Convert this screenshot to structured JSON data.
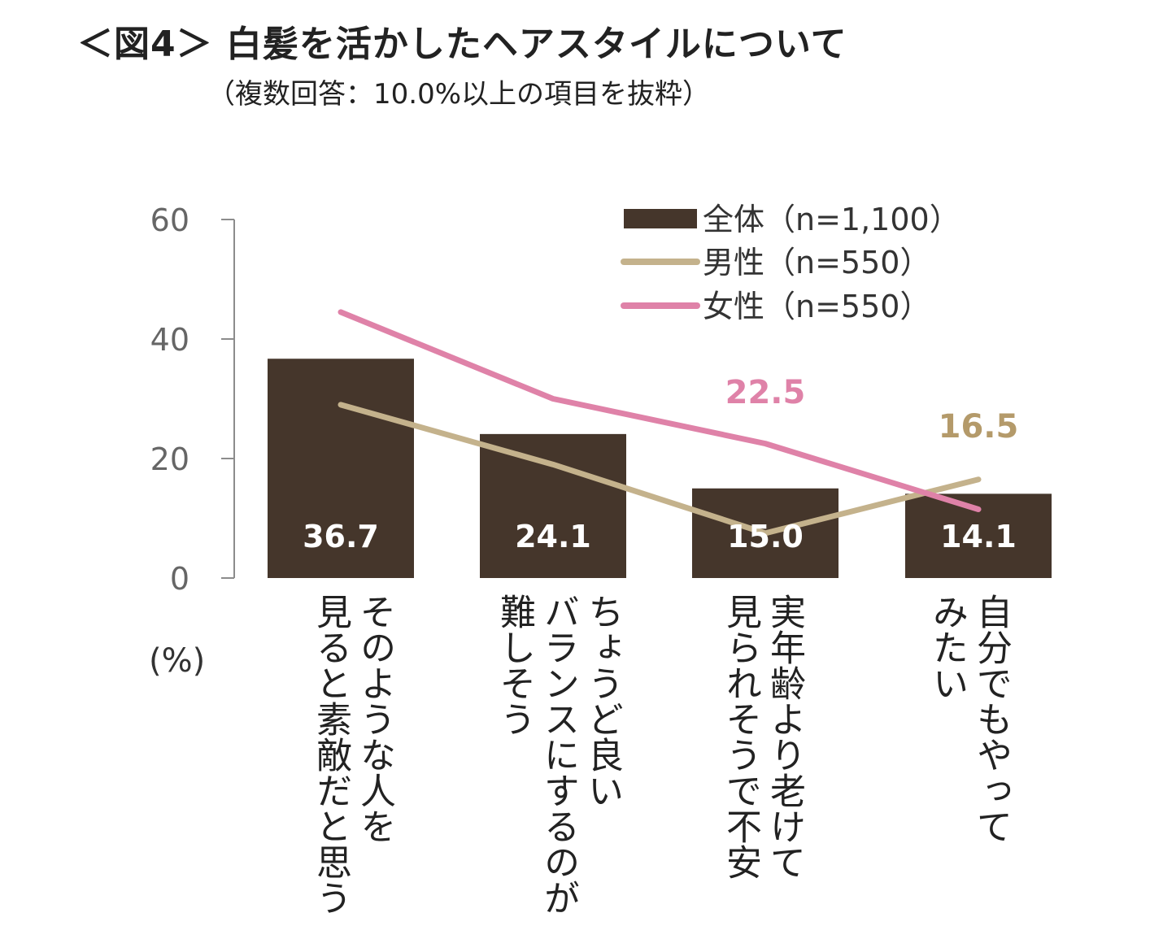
{
  "title": "＜図4＞ 白髪を活かしたヘアスタイルについて",
  "subtitle": "（複数回答：10.0%以上の項目を抜粋）",
  "chart_data": {
    "type": "bar+line",
    "title": "＜図4＞ 白髪を活かしたヘアスタイルについて",
    "subtitle": "（複数回答：10.0%以上の項目を抜粋）",
    "ylabel": "(%)",
    "ylim": [
      0,
      60
    ],
    "yticks": [
      0,
      20,
      40,
      60
    ],
    "categories": [
      [
        "そのような人を",
        "見ると素敵だと思う"
      ],
      [
        "ちょうど良い",
        "バランスにするのが",
        "難しそう"
      ],
      [
        "実年齢より老けて",
        "見られそうで不安"
      ],
      [
        "自分でもやって",
        "みたい"
      ]
    ],
    "series": [
      {
        "name": "全体（n=1,100）",
        "kind": "bar",
        "color": "#45362b",
        "values": [
          36.7,
          24.1,
          15.0,
          14.1
        ],
        "labels": [
          "36.7",
          "24.1",
          "15.0",
          "14.1"
        ]
      },
      {
        "name": "男性（n=550）",
        "kind": "line",
        "color": "#c4b28c",
        "values": [
          29.0,
          19.0,
          7.5,
          16.5
        ]
      },
      {
        "name": "女性（n=550）",
        "kind": "line",
        "color": "#df82a8",
        "values": [
          44.5,
          30.0,
          22.5,
          11.5
        ]
      }
    ],
    "annotations": [
      {
        "series": "女性（n=550）",
        "category_index": 2,
        "text": "22.5",
        "color": "#df82a8"
      },
      {
        "series": "男性（n=550）",
        "category_index": 3,
        "text": "16.5",
        "color": "#b49a6a"
      }
    ],
    "legend_position": "top-right"
  }
}
